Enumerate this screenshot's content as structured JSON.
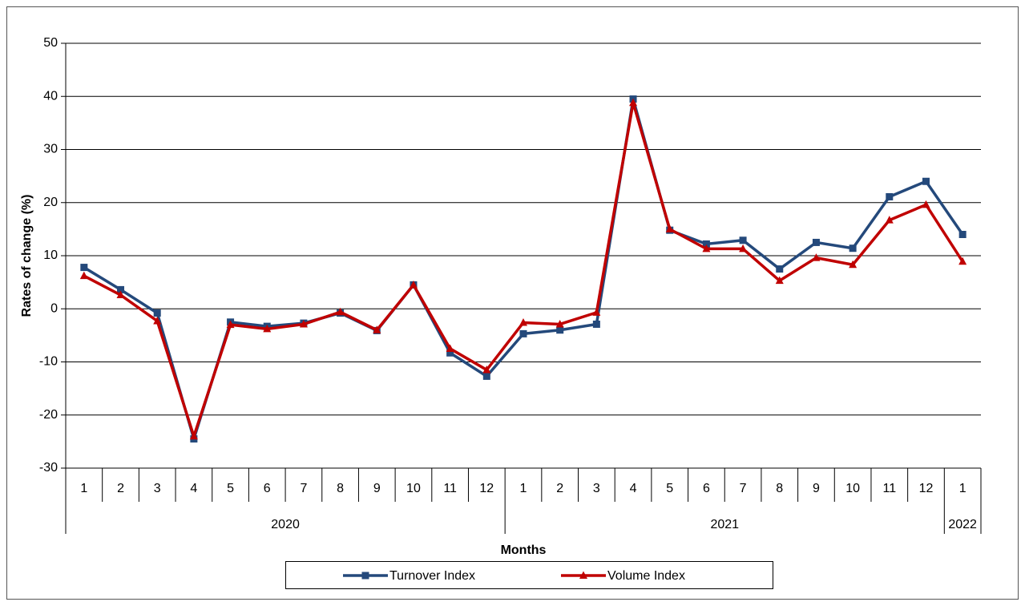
{
  "chart_data": {
    "type": "line",
    "y_label": "Rates of change (%)",
    "x_label": "Months",
    "categories": [
      "1",
      "2",
      "3",
      "4",
      "5",
      "6",
      "7",
      "8",
      "9",
      "10",
      "11",
      "12",
      "1",
      "2",
      "3",
      "4",
      "5",
      "6",
      "7",
      "8",
      "9",
      "10",
      "11",
      "12",
      "1"
    ],
    "category_groups": [
      {
        "label": "2020",
        "count": 12
      },
      {
        "label": "2021",
        "count": 12
      },
      {
        "label": "2022",
        "count": 1
      }
    ],
    "series": [
      {
        "name": "Turnover Index",
        "color": "#24497b",
        "marker": "square",
        "values": [
          7.8,
          3.6,
          -0.8,
          -24.5,
          -2.5,
          -3.3,
          -2.7,
          -0.8,
          -4.1,
          4.5,
          -8.3,
          -12.7,
          -4.7,
          -4.0,
          -2.9,
          39.5,
          14.8,
          12.2,
          12.9,
          7.5,
          12.5,
          11.4,
          21.1,
          24.0,
          14.0
        ]
      },
      {
        "name": "Volume Index",
        "color": "#c00000",
        "marker": "triangle",
        "values": [
          6.2,
          2.6,
          -2.3,
          -24.0,
          -3.0,
          -3.8,
          -2.9,
          -0.6,
          -4.0,
          4.5,
          -7.5,
          -11.5,
          -2.6,
          -2.9,
          -0.7,
          38.8,
          15.0,
          11.3,
          11.3,
          5.3,
          9.6,
          8.3,
          16.7,
          19.6,
          8.9
        ]
      }
    ],
    "ylim": [
      -30,
      50
    ],
    "yticks": [
      -30,
      -20,
      -10,
      0,
      10,
      20,
      30,
      40,
      50
    ],
    "grid": true,
    "legend": "bottom"
  }
}
